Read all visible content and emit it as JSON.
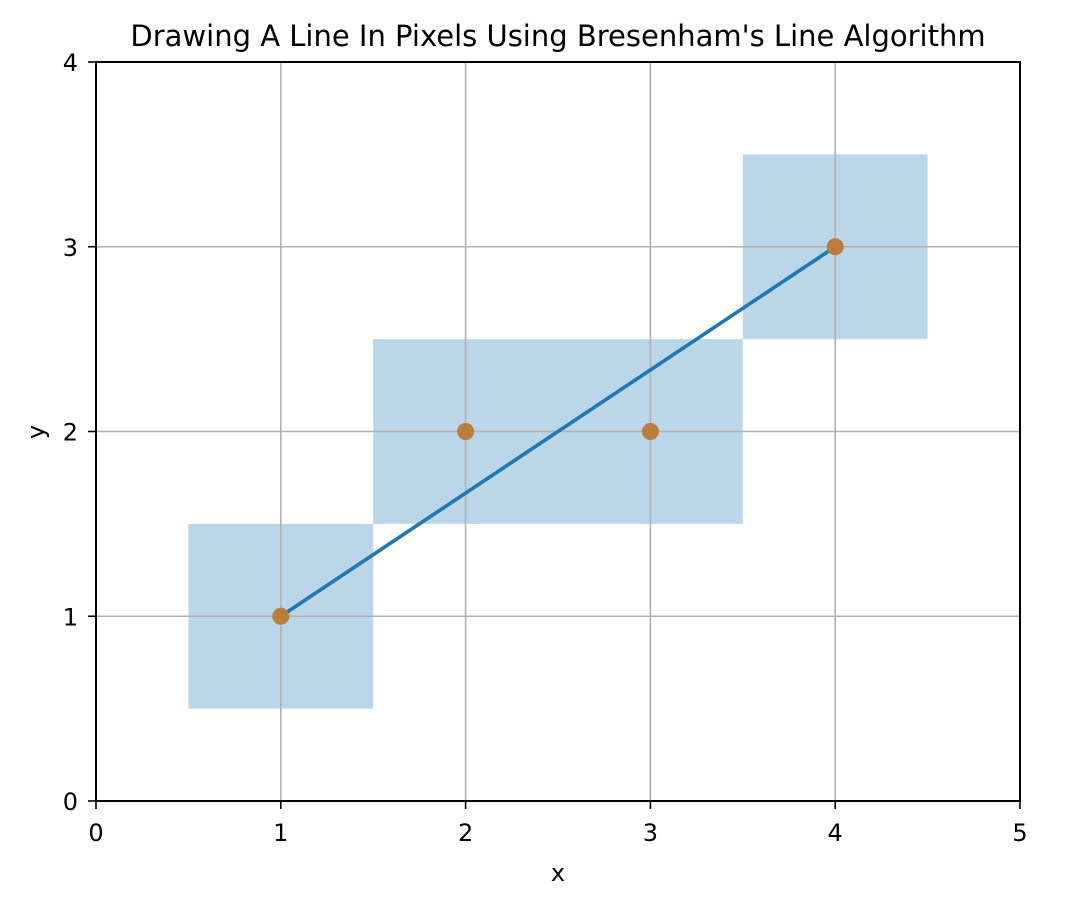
{
  "chart_data": {
    "type": "line",
    "title": "Drawing A Line In Pixels Using Bresenham's Line Algorithm",
    "xlabel": "x",
    "ylabel": "y",
    "xlim": [
      0,
      5
    ],
    "ylim": [
      0,
      4
    ],
    "xticks": [
      "0",
      "1",
      "2",
      "3",
      "4",
      "5"
    ],
    "yticks": [
      "0",
      "1",
      "2",
      "3",
      "4"
    ],
    "grid": true,
    "line": {
      "x": [
        1,
        4
      ],
      "y": [
        1,
        3
      ],
      "color": "#1f77b4"
    },
    "points": {
      "x": [
        1,
        2,
        3,
        4
      ],
      "y": [
        1,
        2,
        2,
        3
      ],
      "color": "#ff7f0e"
    },
    "pixel_regions": [
      {
        "x": [
          0.5,
          1.5
        ],
        "y": [
          0.5,
          1.5
        ]
      },
      {
        "x": [
          1.5,
          3.5
        ],
        "y": [
          1.5,
          2.5
        ]
      },
      {
        "x": [
          3.5,
          4.5
        ],
        "y": [
          2.5,
          3.5
        ]
      }
    ],
    "pixel_color": "#1f77b4",
    "pixel_opacity": 0.3,
    "grid_color": "#b0b0b0"
  }
}
